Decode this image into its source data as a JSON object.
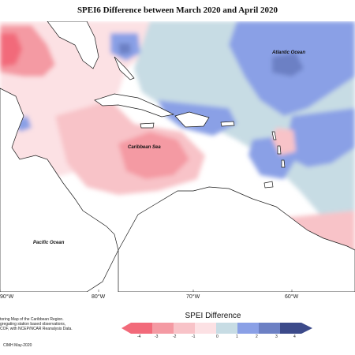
{
  "title": "SPEI6 Difference between March 2020 and April 2020",
  "map": {
    "labels": {
      "atlantic": "Atlantic Ocean",
      "caribbean": "Caribbean Sea",
      "pacific": "Pacific Ocean"
    },
    "longitude_ticks": [
      "90°W",
      "80°W",
      "70°W",
      "60°W"
    ]
  },
  "footer": {
    "lines": [
      "toring Map of the Caribbean Region.",
      "gregating station based observations,",
      "COF, with NCEP/NCAR Reanalysis Data."
    ],
    "credit": "CIMH May-2020"
  },
  "legend": {
    "title": "SPEI Difference",
    "ticks": [
      "-4",
      "-3",
      "-2",
      "-1",
      "0",
      "1",
      "2",
      "3",
      "4"
    ],
    "colors": [
      "#f26a7a",
      "#f49aa3",
      "#f8c3c8",
      "#fce1e4",
      "#ffffff",
      "#c7dce4",
      "#8aa0e6",
      "#6c80c4",
      "#3c4a8a"
    ]
  },
  "palette": {
    "ocean": "#ffffff",
    "land": "#ffffff",
    "deep_red": "#f26a7a",
    "red": "#f49aa3",
    "pink": "#f8c3c8",
    "light_pink": "#fce1e4",
    "light_blue": "#c7dce4",
    "blue": "#8aa0e6",
    "dark_blue": "#6c80c4"
  }
}
